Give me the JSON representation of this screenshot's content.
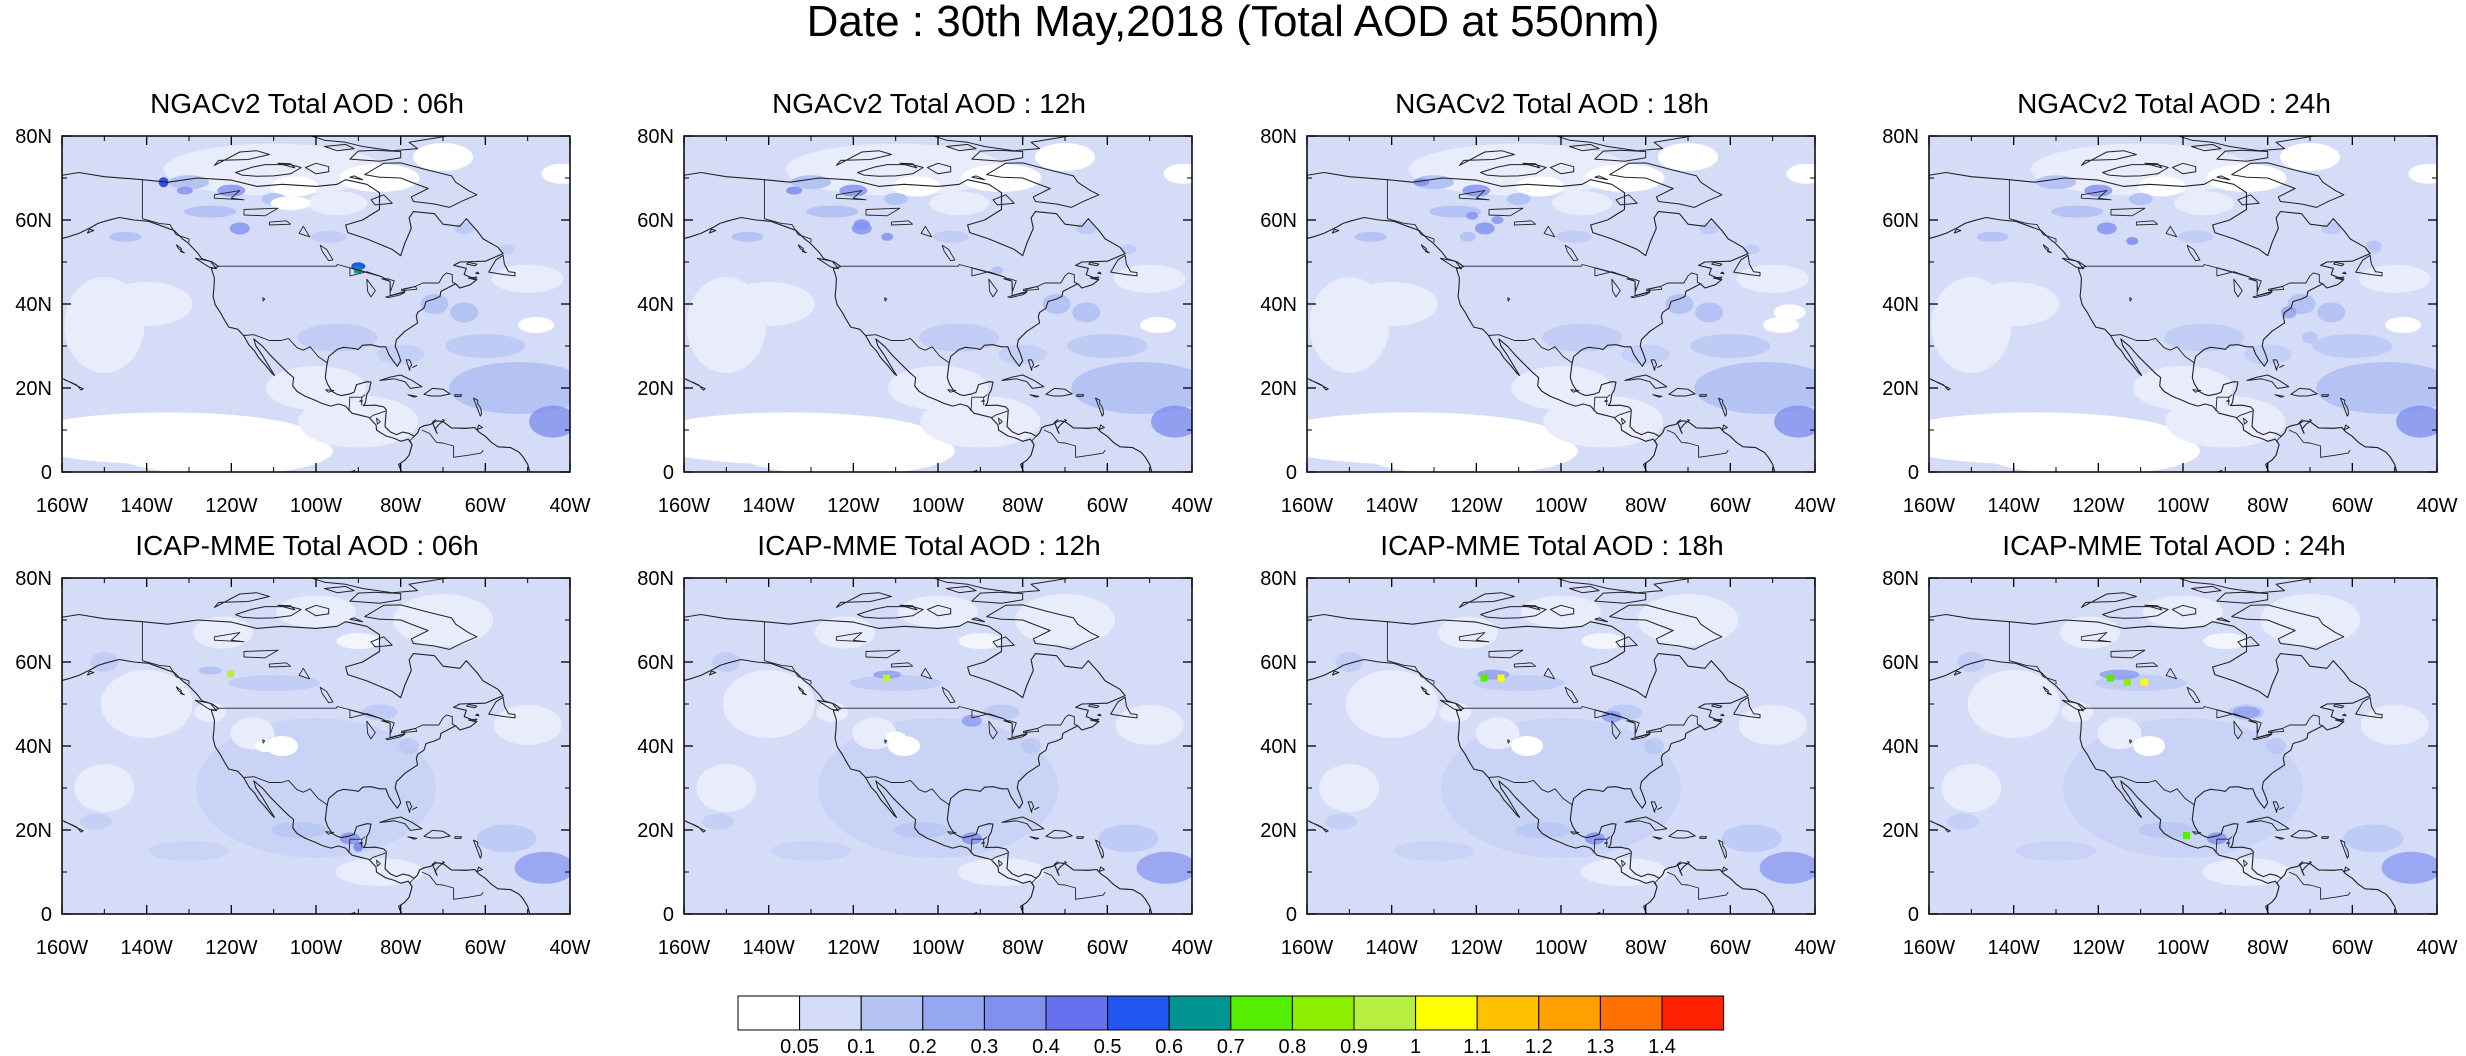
{
  "title": "Date : 30th May,2018 (Total AOD at 550nm)",
  "lat_ticks": [
    "80N",
    "60N",
    "40N",
    "20N",
    "0"
  ],
  "lon_ticks": [
    "160W",
    "140W",
    "120W",
    "100W",
    "80W",
    "60W",
    "40W"
  ],
  "region": {
    "lon_range": [
      -160,
      -40
    ],
    "lat_range": [
      0,
      80
    ],
    "lon_unit": "degrees_east",
    "lat_unit": "degrees_north"
  },
  "panels": [
    {
      "title": "NGACv2 Total AOD : 06h",
      "model": "NGACv2",
      "forecast_hour": 6
    },
    {
      "title": "NGACv2 Total AOD : 12h",
      "model": "NGACv2",
      "forecast_hour": 12
    },
    {
      "title": "NGACv2 Total AOD : 18h",
      "model": "NGACv2",
      "forecast_hour": 18
    },
    {
      "title": "NGACv2 Total AOD : 24h",
      "model": "NGACv2",
      "forecast_hour": 24
    },
    {
      "title": "ICAP-MME Total AOD : 06h",
      "model": "ICAP-MME",
      "forecast_hour": 6
    },
    {
      "title": "ICAP-MME Total AOD : 12h",
      "model": "ICAP-MME",
      "forecast_hour": 12
    },
    {
      "title": "ICAP-MME Total AOD : 18h",
      "model": "ICAP-MME",
      "forecast_hour": 18
    },
    {
      "title": "ICAP-MME Total AOD : 24h",
      "model": "ICAP-MME",
      "forecast_hour": 24
    }
  ],
  "colorbar": {
    "colors": [
      "#ffffff",
      "#d5dcf8",
      "#b4c3f4",
      "#96a8f2",
      "#8090ef",
      "#6670ee",
      "#2256f0",
      "#009590",
      "#55ee00",
      "#8cee00",
      "#b8ee40",
      "#ffff00",
      "#ffc000",
      "#ffa000",
      "#ff7000",
      "#ff2000"
    ],
    "labels": [
      "0.05",
      "0.1",
      "0.2",
      "0.3",
      "0.4",
      "0.5",
      "0.6",
      "0.7",
      "0.8",
      "0.9",
      "1",
      "1.1",
      "1.2",
      "1.3",
      "1.4"
    ]
  },
  "map_colors": {
    "background": "#d5dcf8",
    "light": "#e8ecfb",
    "white": "#ffffff",
    "medium": "#b4c3f4",
    "dark": "#8090ef",
    "coast": "#222222"
  }
}
